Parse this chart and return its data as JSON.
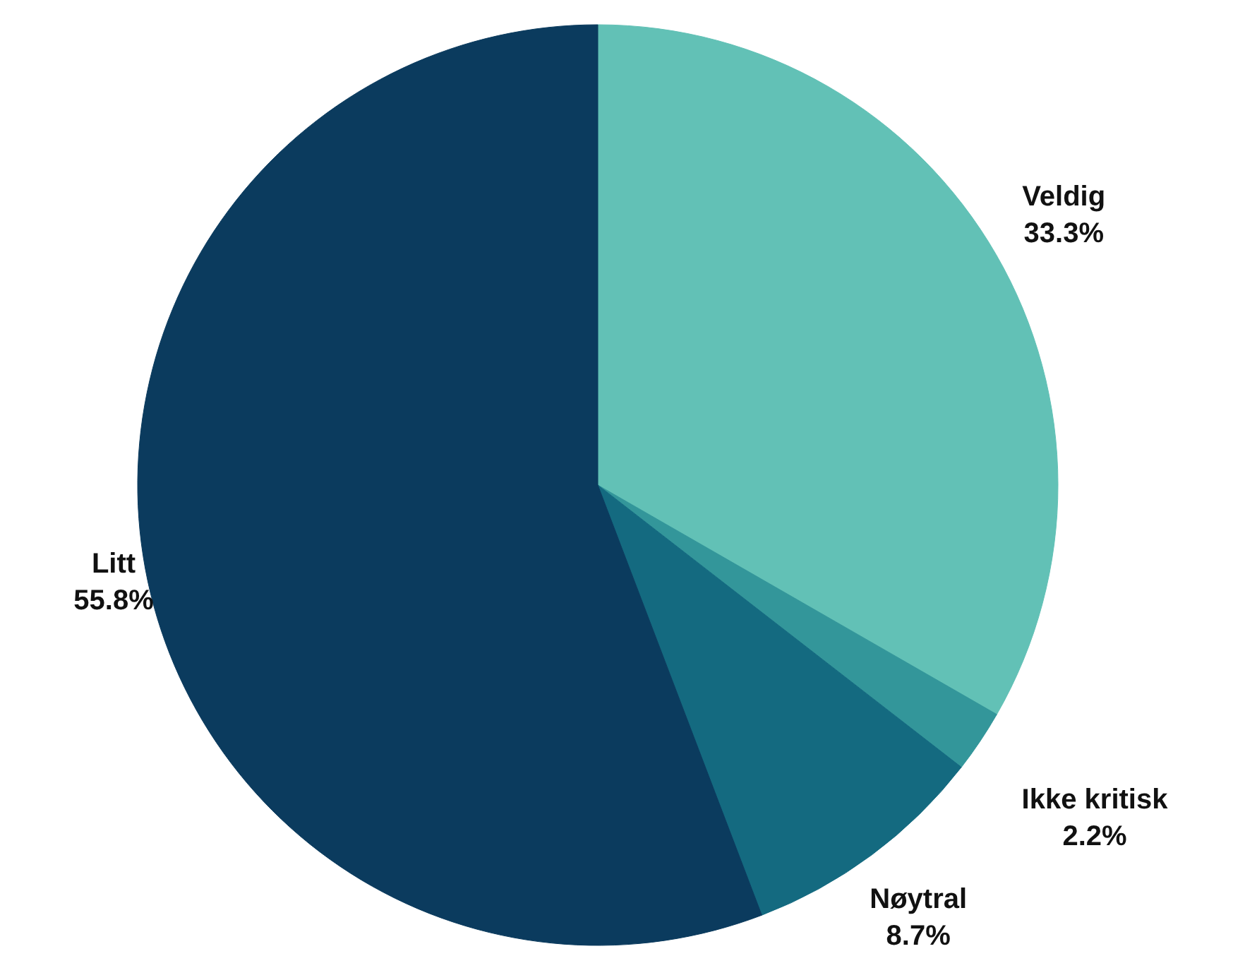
{
  "chart_data": {
    "type": "pie",
    "categories": [
      "Veldig",
      "Ikke kritisk",
      "Nøytral",
      "Litt"
    ],
    "values": [
      33.3,
      2.2,
      8.7,
      55.8
    ],
    "value_labels": [
      "33.3%",
      "2.2%",
      "8.7%",
      "55.8%"
    ],
    "colors": [
      "#62c1b6",
      "#33969a",
      "#146a80",
      "#0b3b5e"
    ]
  }
}
